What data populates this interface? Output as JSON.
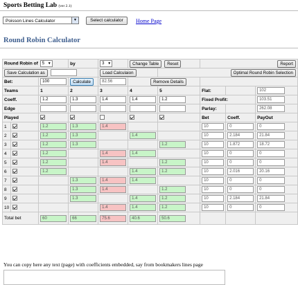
{
  "header": {
    "title": "Sports Betting Lab",
    "version": "(ver 2.1)"
  },
  "calc_select": {
    "value": "Poisson Lines Calculator",
    "button": "Select calculator"
  },
  "home_link": "Home Page",
  "page_title": "Round Robin Calculator",
  "controls": {
    "rr_label": "Round Robin of",
    "rr_value": "5",
    "by_label": "by",
    "by_value": "3",
    "change_table": "Change Table",
    "reset": "Reset",
    "report": "Report",
    "save": "Save Calculation as",
    "load": "Load Calculaion",
    "optimal": "Optimal Round Robin Selection",
    "bet_label": "Bet:",
    "bet_value": "100",
    "calculate": "Calculate",
    "calc_result": "82.56",
    "remove_details": "Remove Details"
  },
  "labels": {
    "teams": "Teams",
    "coeff": "Coeff.",
    "edge": "Edge",
    "played": "Played",
    "flat": "Flat:",
    "fixed_profit": "Fixed Profit:",
    "parlay": "Parlay:",
    "bet_col": "Bet",
    "coeff_col": "Coeff.",
    "payout_col": "PayOut",
    "total_bet": "Total bet"
  },
  "summary": {
    "flat": "102",
    "fixed_profit": "103.51",
    "parlay": "262.08"
  },
  "teams": [
    {
      "num": "1",
      "coeff": "1.2",
      "played": true
    },
    {
      "num": "2",
      "coeff": "1.3",
      "played": true
    },
    {
      "num": "3",
      "coeff": "1.4",
      "played": false
    },
    {
      "num": "4",
      "coeff": "1.4",
      "played": true
    },
    {
      "num": "5",
      "coeff": "1.2",
      "played": true
    }
  ],
  "combos": [
    {
      "num": "1",
      "checked": true,
      "cells": [
        [
          "1.2",
          "g"
        ],
        [
          "1.3",
          "g"
        ],
        [
          "1.4",
          "r"
        ],
        null,
        null
      ],
      "bet": "10",
      "coeff": "0",
      "payout": "0"
    },
    {
      "num": "2",
      "checked": true,
      "cells": [
        [
          "1.2",
          "g"
        ],
        [
          "1.3",
          "g"
        ],
        null,
        [
          "1.4",
          "g"
        ],
        null
      ],
      "bet": "10",
      "coeff": "2.184",
      "payout": "21.84"
    },
    {
      "num": "3",
      "checked": true,
      "cells": [
        [
          "1.2",
          "g"
        ],
        [
          "1.3",
          "g"
        ],
        null,
        null,
        [
          "1.2",
          "g"
        ]
      ],
      "bet": "10",
      "coeff": "1.872",
      "payout": "18.72"
    },
    {
      "num": "4",
      "checked": true,
      "cells": [
        [
          "1.2",
          "g"
        ],
        null,
        [
          "1.4",
          "r"
        ],
        [
          "1.4",
          "g"
        ],
        null
      ],
      "bet": "10",
      "coeff": "0",
      "payout": "0"
    },
    {
      "num": "5",
      "checked": true,
      "cells": [
        [
          "1.2",
          "g"
        ],
        null,
        [
          "1.4",
          "r"
        ],
        null,
        [
          "1.2",
          "g"
        ]
      ],
      "bet": "10",
      "coeff": "0",
      "payout": "0"
    },
    {
      "num": "6",
      "checked": true,
      "cells": [
        [
          "1.2",
          "g"
        ],
        null,
        null,
        [
          "1.4",
          "g"
        ],
        [
          "1.2",
          "g"
        ]
      ],
      "bet": "10",
      "coeff": "2.016",
      "payout": "20.16"
    },
    {
      "num": "7",
      "checked": true,
      "cells": [
        null,
        [
          "1.3",
          "g"
        ],
        [
          "1.4",
          "r"
        ],
        [
          "1.4",
          "g"
        ],
        null
      ],
      "bet": "10",
      "coeff": "0",
      "payout": "0"
    },
    {
      "num": "8",
      "checked": true,
      "cells": [
        null,
        [
          "1.3",
          "g"
        ],
        [
          "1.4",
          "r"
        ],
        null,
        [
          "1.2",
          "g"
        ]
      ],
      "bet": "10",
      "coeff": "0",
      "payout": "0"
    },
    {
      "num": "9",
      "checked": true,
      "cells": [
        null,
        [
          "1.3",
          "g"
        ],
        null,
        [
          "1.4",
          "g"
        ],
        [
          "1.2",
          "g"
        ]
      ],
      "bet": "10",
      "coeff": "2.184",
      "payout": "21.84"
    },
    {
      "num": "10",
      "checked": true,
      "cells": [
        null,
        null,
        [
          "1.4",
          "r"
        ],
        [
          "1.4",
          "g"
        ],
        [
          "1.2",
          "g"
        ]
      ],
      "bet": "10",
      "coeff": "0",
      "payout": "0"
    }
  ],
  "totals": [
    [
      "60",
      "g"
    ],
    [
      "66",
      "g"
    ],
    [
      "75.6",
      "r"
    ],
    [
      "40.6",
      "g"
    ],
    [
      "50.6",
      "g"
    ]
  ],
  "footer_text": "You can copy here any text (page) with coefficients embedded, say from bookmakers lines page"
}
